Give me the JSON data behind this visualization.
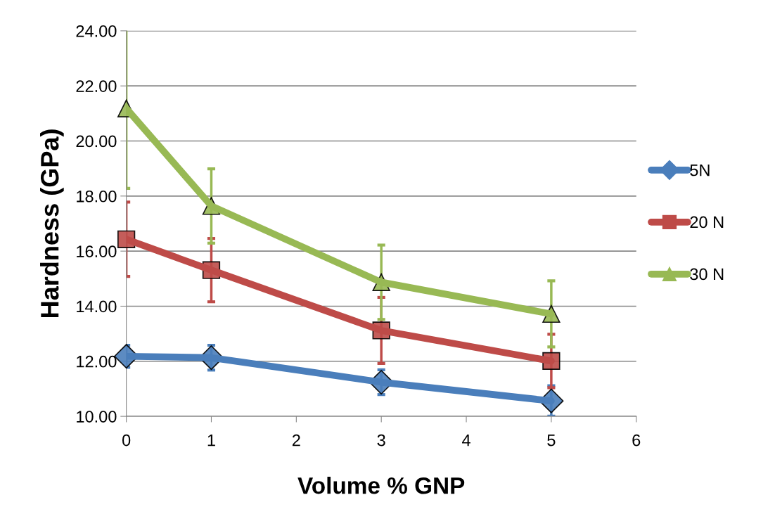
{
  "chart_data": {
    "type": "line",
    "xlabel": "Volume % GNP",
    "ylabel": "Hardness (GPa)",
    "x": [
      0,
      1,
      3,
      5
    ],
    "series": [
      {
        "name": "5N",
        "color": "#4a7ebb",
        "marker": "diamond",
        "values": [
          12.18,
          12.13,
          11.24,
          10.56
        ],
        "errors": [
          0.4,
          0.45,
          0.45,
          0.55
        ]
      },
      {
        "name": "20 N",
        "color": "#be4b48",
        "marker": "square",
        "values": [
          16.43,
          15.31,
          13.12,
          12.01
        ],
        "errors": [
          1.35,
          1.15,
          1.2,
          0.97
        ]
      },
      {
        "name": "30 N",
        "color": "#98b954",
        "marker": "triangle",
        "values": [
          21.18,
          17.64,
          14.87,
          13.72
        ],
        "errors": [
          2.9,
          1.35,
          1.35,
          1.2
        ]
      }
    ],
    "xlim": [
      0,
      6
    ],
    "xticks": [
      0,
      1,
      2,
      3,
      4,
      5,
      6
    ],
    "ylim": [
      10,
      24
    ],
    "yticks": [
      {
        "value": 10,
        "label": "10.00"
      },
      {
        "value": 12,
        "label": "12.00"
      },
      {
        "value": 14,
        "label": "14.00"
      },
      {
        "value": 16,
        "label": "16.00"
      },
      {
        "value": 18,
        "label": "18.00"
      },
      {
        "value": 20,
        "label": "20.00"
      },
      {
        "value": 22,
        "label": "22.00"
      },
      {
        "value": 24,
        "label": "24.00"
      }
    ],
    "grid": "y",
    "legend": "right",
    "line_style": "solid"
  }
}
